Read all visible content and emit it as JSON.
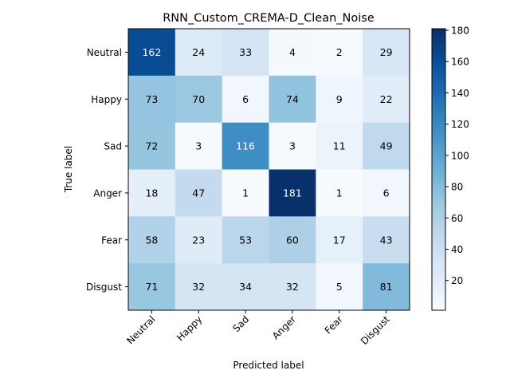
{
  "chart_data": {
    "type": "heatmap",
    "title": "RNN_Custom_CREMA-D_Clean_Noise",
    "xlabel": "Predicted label",
    "ylabel": "True label",
    "x_categories": [
      "Neutral",
      "Happy",
      "Sad",
      "Anger",
      "Fear",
      "Disgust"
    ],
    "y_categories": [
      "Neutral",
      "Happy",
      "Sad",
      "Anger",
      "Fear",
      "Disgust"
    ],
    "matrix": [
      [
        162,
        24,
        33,
        4,
        2,
        29
      ],
      [
        73,
        70,
        6,
        74,
        9,
        22
      ],
      [
        72,
        3,
        116,
        3,
        11,
        49
      ],
      [
        18,
        47,
        1,
        181,
        1,
        6
      ],
      [
        58,
        23,
        53,
        60,
        17,
        43
      ],
      [
        71,
        32,
        34,
        32,
        5,
        81
      ]
    ],
    "colormap": "Blues",
    "colorbar": {
      "range": [
        1,
        181
      ],
      "ticks": [
        20,
        40,
        60,
        80,
        100,
        120,
        140,
        160,
        180
      ]
    },
    "colors": {
      "low": "#f7fbff",
      "high": "#08306b"
    }
  }
}
